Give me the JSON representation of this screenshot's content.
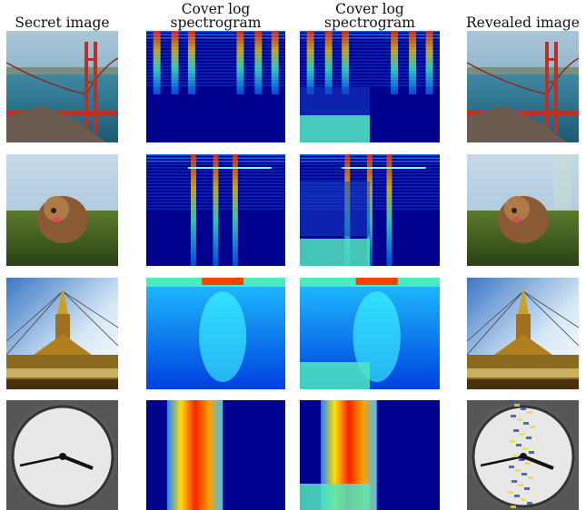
{
  "columns": [
    {
      "lines": [
        "Secret image"
      ]
    },
    {
      "lines": [
        "Cover log",
        "spectrogram"
      ]
    },
    {
      "lines": [
        "Cover log",
        "spectrogram"
      ]
    },
    {
      "lines": [
        "Revealed image"
      ]
    }
  ]
}
